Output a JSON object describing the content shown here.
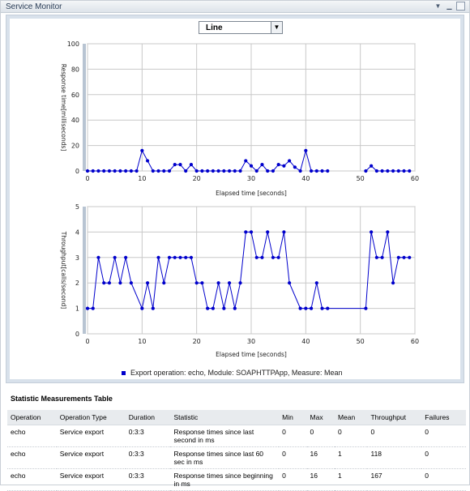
{
  "window": {
    "title": "Service Monitor"
  },
  "chart_controls": {
    "view_selected": "Line"
  },
  "chart_data": [
    {
      "type": "line",
      "xlabel": "Elapsed time [seconds]",
      "ylabel": "Response time[milliseconds]",
      "xlim": [
        0,
        60
      ],
      "ylim": [
        0,
        100
      ],
      "xticks": [
        "0",
        "10",
        "20",
        "30",
        "40",
        "50",
        "60"
      ],
      "yticks": [
        "0",
        "20",
        "40",
        "60",
        "80",
        "100"
      ],
      "grid": true,
      "series": [
        {
          "name": "Export operation: echo,  Module: SOAPHTTPApp,  Measure: Mean",
          "segments": [
            [
              [
                0,
                0
              ],
              [
                1,
                0
              ],
              [
                2,
                0
              ],
              [
                3,
                0
              ],
              [
                4,
                0
              ],
              [
                5,
                0
              ],
              [
                6,
                0
              ],
              [
                7,
                0
              ],
              [
                8,
                0
              ],
              [
                9,
                0
              ],
              [
                10,
                16
              ],
              [
                11,
                8
              ],
              [
                12,
                0
              ],
              [
                13,
                0
              ],
              [
                14,
                0
              ],
              [
                15,
                0
              ],
              [
                16,
                5
              ],
              [
                17,
                5
              ],
              [
                18,
                0
              ],
              [
                19,
                5
              ],
              [
                20,
                0
              ],
              [
                21,
                0
              ],
              [
                22,
                0
              ],
              [
                23,
                0
              ],
              [
                24,
                0
              ],
              [
                25,
                0
              ],
              [
                26,
                0
              ],
              [
                27,
                0
              ],
              [
                28,
                0
              ],
              [
                29,
                8
              ],
              [
                30,
                4
              ],
              [
                31,
                0
              ],
              [
                32,
                5
              ],
              [
                33,
                0
              ],
              [
                34,
                0
              ],
              [
                35,
                5
              ],
              [
                36,
                4
              ],
              [
                37,
                8
              ],
              [
                38,
                3
              ],
              [
                39,
                0
              ],
              [
                40,
                16
              ],
              [
                41,
                0
              ],
              [
                42,
                0
              ],
              [
                43,
                0
              ],
              [
                44,
                0
              ]
            ],
            [
              [
                51,
                0
              ],
              [
                52,
                4
              ],
              [
                53,
                0
              ],
              [
                54,
                0
              ],
              [
                55,
                0
              ],
              [
                56,
                0
              ],
              [
                57,
                0
              ],
              [
                58,
                0
              ],
              [
                59,
                0
              ]
            ]
          ]
        }
      ]
    },
    {
      "type": "line",
      "xlabel": "Elapsed time [seconds]",
      "ylabel": "Throughput[calls/second]",
      "xlim": [
        0,
        60
      ],
      "ylim": [
        0,
        5
      ],
      "xticks": [
        "0",
        "10",
        "20",
        "30",
        "40",
        "50",
        "60"
      ],
      "yticks": [
        "0",
        "1",
        "2",
        "3",
        "4",
        "5"
      ],
      "grid": true,
      "series": [
        {
          "name": "Export operation: echo,  Module: SOAPHTTPApp,  Measure: Mean",
          "segments": [
            [
              [
                0,
                1
              ],
              [
                1,
                1
              ],
              [
                2,
                3
              ],
              [
                3,
                2
              ],
              [
                4,
                2
              ],
              [
                5,
                3
              ],
              [
                6,
                2
              ],
              [
                7,
                3
              ],
              [
                8,
                2
              ],
              [
                10,
                1
              ],
              [
                11,
                2
              ],
              [
                12,
                1
              ],
              [
                13,
                3
              ],
              [
                14,
                2
              ],
              [
                15,
                3
              ],
              [
                16,
                3
              ],
              [
                17,
                3
              ],
              [
                18,
                3
              ],
              [
                19,
                3
              ],
              [
                20,
                2
              ],
              [
                21,
                2
              ],
              [
                22,
                1
              ],
              [
                23,
                1
              ],
              [
                24,
                2
              ],
              [
                25,
                1
              ],
              [
                26,
                2
              ],
              [
                27,
                1
              ],
              [
                28,
                2
              ],
              [
                29,
                4
              ],
              [
                30,
                4
              ],
              [
                31,
                3
              ],
              [
                32,
                3
              ],
              [
                33,
                4
              ],
              [
                34,
                3
              ],
              [
                35,
                3
              ],
              [
                36,
                4
              ],
              [
                37,
                2
              ],
              [
                39,
                1
              ],
              [
                40,
                1
              ],
              [
                41,
                1
              ],
              [
                42,
                2
              ],
              [
                43,
                1
              ],
              [
                44,
                1
              ],
              [
                51,
                1
              ],
              [
                52,
                4
              ],
              [
                53,
                3
              ],
              [
                54,
                3
              ],
              [
                55,
                4
              ],
              [
                56,
                2
              ],
              [
                57,
                3
              ],
              [
                58,
                3
              ],
              [
                59,
                3
              ]
            ]
          ]
        }
      ]
    }
  ],
  "legend": {
    "label": "Export operation: echo,  Module: SOAPHTTPApp,  Measure: Mean",
    "color": "#0000cc"
  },
  "table": {
    "title": "Statistic Measurements Table",
    "columns": [
      "Operation",
      "Operation Type",
      "Duration",
      "Statistic",
      "Min",
      "Max",
      "Mean",
      "Throughput",
      "Failures"
    ],
    "rows": [
      [
        "echo",
        "Service export",
        "0:3:3",
        "Response times since last second in ms",
        "0",
        "0",
        "0",
        "0",
        "0"
      ],
      [
        "echo",
        "Service export",
        "0:3:3",
        "Response times since last 60 sec in ms",
        "0",
        "16",
        "1",
        "118",
        "0"
      ],
      [
        "echo",
        "Service export",
        "0:3:3",
        "Response times since beginning in ms",
        "0",
        "16",
        "1",
        "167",
        "0"
      ]
    ]
  },
  "colors": {
    "series": "#0000cc",
    "grid": "#c8c8c8",
    "frame": "#d8e1eb"
  },
  "icons": {
    "menu": "chevron-down-icon",
    "minimize": "minimize-icon",
    "maximize": "maximize-icon"
  }
}
